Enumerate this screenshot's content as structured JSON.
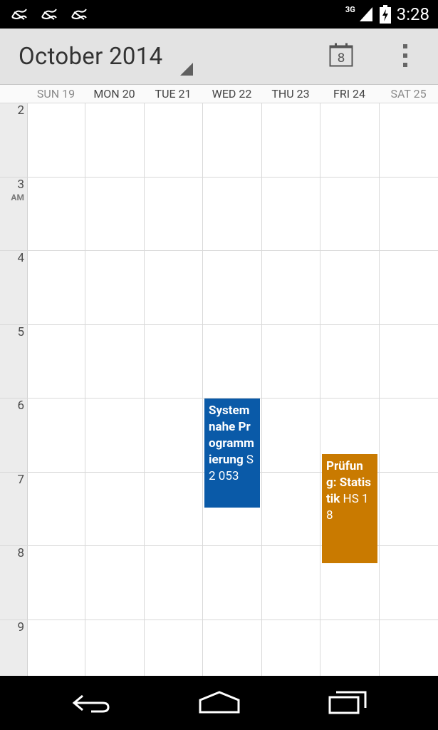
{
  "status_bar": {
    "network": "3G",
    "time": "3:28"
  },
  "header": {
    "month_title": "October 2014",
    "today_icon_day": "8"
  },
  "days": [
    {
      "label": "SUN 19",
      "weekend": true
    },
    {
      "label": "MON 20",
      "weekend": false
    },
    {
      "label": "TUE 21",
      "weekend": false
    },
    {
      "label": "WED 22",
      "weekend": false
    },
    {
      "label": "THU 23",
      "weekend": false
    },
    {
      "label": "FRI 24",
      "weekend": false
    },
    {
      "label": "SAT 25",
      "weekend": true
    }
  ],
  "hours": [
    {
      "label": "2"
    },
    {
      "label": "3",
      "ampm": "AM"
    },
    {
      "label": "4"
    },
    {
      "label": "5"
    },
    {
      "label": "6"
    },
    {
      "label": "7"
    },
    {
      "label": "8"
    },
    {
      "label": "9"
    }
  ],
  "events": [
    {
      "title": "Systemnahe Programmierung",
      "location": "S2 053",
      "day_index": 3,
      "start_hour": 6.0,
      "end_hour": 7.5,
      "color": "#0a5aa8"
    },
    {
      "title": "Prüfung: Statistik",
      "location": "HS 18",
      "day_index": 5,
      "start_hour": 6.75,
      "end_hour": 8.25,
      "color": "#c97a00"
    }
  ],
  "icons": {
    "notifications": [
      "notification-icon",
      "notification-icon",
      "notification-icon"
    ],
    "signal": "signal-icon",
    "battery": "battery-charging-icon",
    "today": "calendar-today-icon",
    "overflow": "overflow-menu-icon",
    "back": "back-icon",
    "home": "home-icon",
    "recents": "recents-icon"
  }
}
